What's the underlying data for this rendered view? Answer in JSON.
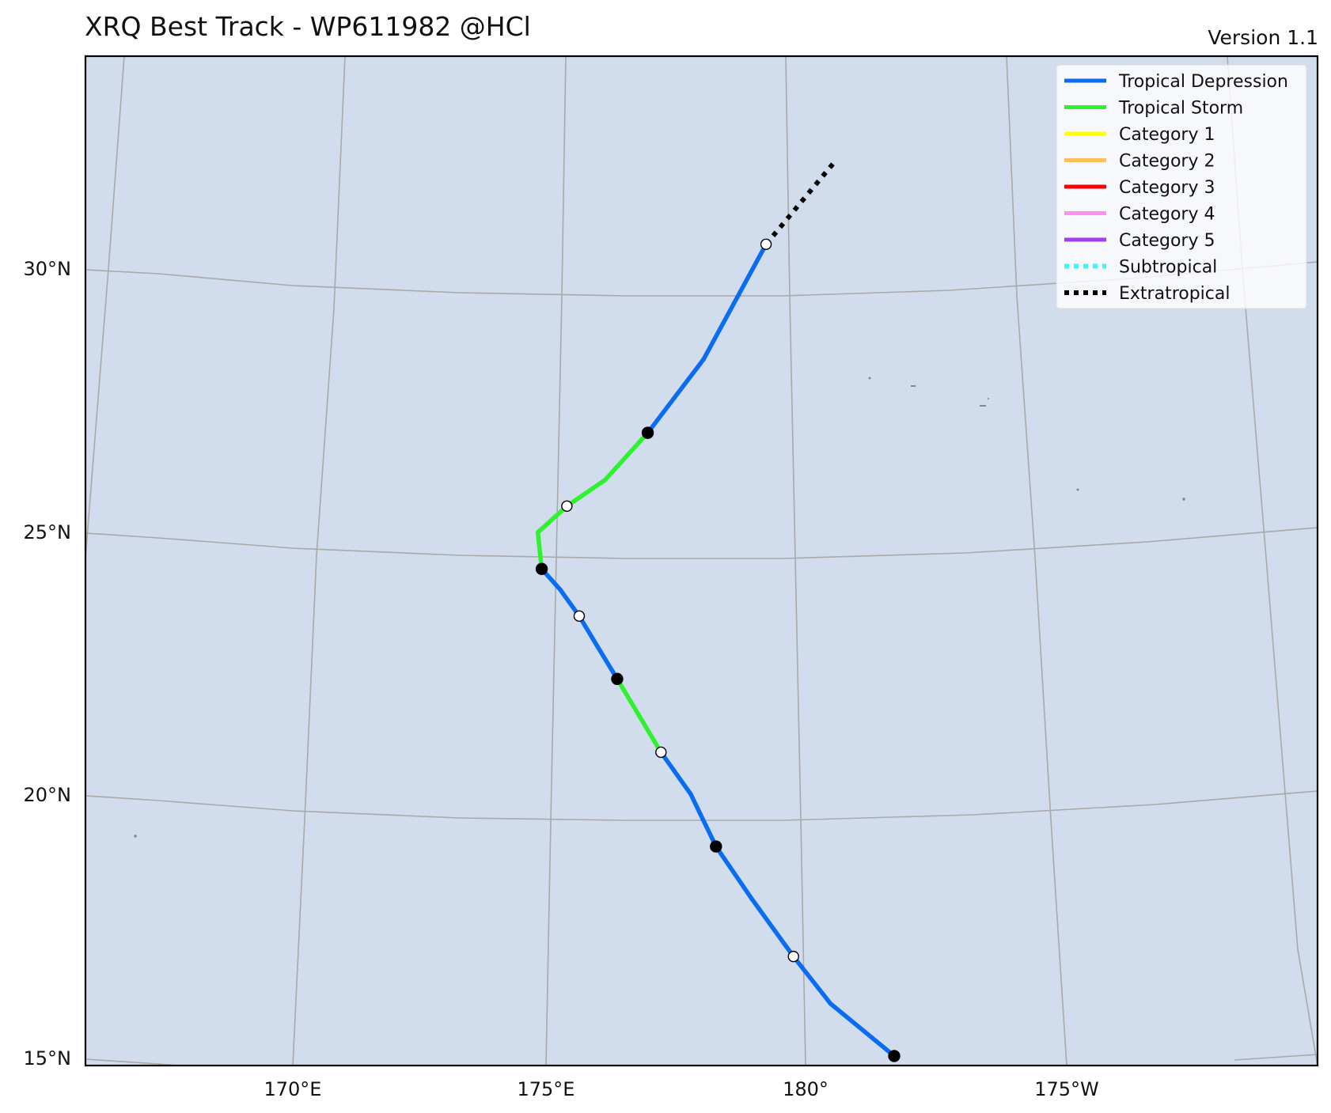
{
  "title": "XRQ Best Track - WP611982  @HCl",
  "version": "Version 1.1",
  "map": {
    "ocean_color": "#d1dced",
    "grid_color": "#a9a9a9",
    "lat_labels": [
      "30°N",
      "25°N",
      "20°N",
      "15°N"
    ],
    "lon_labels": [
      "170°E",
      "175°E",
      "180°",
      "175°W"
    ]
  },
  "legend": [
    {
      "label": "Tropical Depression",
      "color": "#0a6cf0",
      "style": "solid"
    },
    {
      "label": "Tropical Storm",
      "color": "#2ef22e",
      "style": "solid"
    },
    {
      "label": "Category 1",
      "color": "#ffff00",
      "style": "solid"
    },
    {
      "label": "Category 2",
      "color": "#ffc05c",
      "style": "solid"
    },
    {
      "label": "Category 3",
      "color": "#ff0000",
      "style": "solid"
    },
    {
      "label": "Category 4",
      "color": "#ff8ff0",
      "style": "solid"
    },
    {
      "label": "Category 5",
      "color": "#a53cf0",
      "style": "solid"
    },
    {
      "label": "Subtropical",
      "color": "#3ff5f5",
      "style": "dotted"
    },
    {
      "label": "Extratropical",
      "color": "#000000",
      "style": "dotted"
    }
  ],
  "track": [
    {
      "lon": 181.7,
      "lat": 15.5,
      "status": "TD",
      "marker": "filled"
    },
    {
      "lon": 180.5,
      "lat": 16.5,
      "status": "TD",
      "marker": "none"
    },
    {
      "lon": 179.8,
      "lat": 17.4,
      "status": "TD",
      "marker": "open"
    },
    {
      "lon": 179.0,
      "lat": 18.5,
      "status": "TD",
      "marker": "none"
    },
    {
      "lon": 178.3,
      "lat": 19.5,
      "status": "TD",
      "marker": "filled"
    },
    {
      "lon": 177.8,
      "lat": 20.5,
      "status": "TD",
      "marker": "none"
    },
    {
      "lon": 177.2,
      "lat": 21.3,
      "status": "TS",
      "marker": "open"
    },
    {
      "lon": 176.3,
      "lat": 22.7,
      "status": "TD",
      "marker": "filled"
    },
    {
      "lon": 175.9,
      "lat": 23.3,
      "status": "TD",
      "marker": "none"
    },
    {
      "lon": 175.5,
      "lat": 23.9,
      "status": "TD",
      "marker": "open"
    },
    {
      "lon": 175.1,
      "lat": 24.4,
      "status": "TD",
      "marker": "none"
    },
    {
      "lon": 174.7,
      "lat": 24.8,
      "status": "TS",
      "marker": "filled"
    },
    {
      "lon": 174.6,
      "lat": 25.5,
      "status": "TS",
      "marker": "none"
    },
    {
      "lon": 175.2,
      "lat": 26.0,
      "status": "TS",
      "marker": "open"
    },
    {
      "lon": 176.0,
      "lat": 26.5,
      "status": "TS",
      "marker": "none"
    },
    {
      "lon": 176.9,
      "lat": 27.4,
      "status": "TD",
      "marker": "filled"
    },
    {
      "lon": 178.1,
      "lat": 28.8,
      "status": "TD",
      "marker": "none"
    },
    {
      "lon": 179.5,
      "lat": 31.0,
      "status": "EX",
      "marker": "open"
    },
    {
      "lon": 181.1,
      "lat": 32.6,
      "status": "EX",
      "marker": "none"
    }
  ]
}
